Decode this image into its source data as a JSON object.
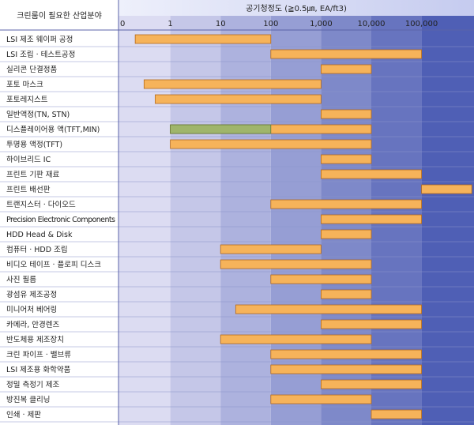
{
  "header": {
    "left_title": "크린룸이 필요한 산업분야",
    "top_title": "공기청정도 (≧0.5㎛, EA/ft3)"
  },
  "chart_data": {
    "type": "bar",
    "orientation": "horizontal-range",
    "x_scale": "log",
    "x_tick_labels": [
      "0",
      "1",
      "10",
      "100",
      "1,000",
      "10,000",
      "100,000"
    ],
    "categories": [
      "LSI 제조 웨이퍼 공정",
      "LSI 조립 · 테스트공정",
      "실리콘 단결정품",
      "포토 마스크",
      "포토레지스트",
      "일반액정(TN, STN)",
      "디스플레이어용 액(TFT,MIN)",
      "투명용 액정(TFT)",
      "하이브리드 IC",
      "프린트 기판 재료",
      "프린트 배선판",
      "트랜지스터 · 다이오드",
      "Precision Electronic Components",
      "HDD Head & Disk",
      "컴퓨터 · HDD 조립",
      "비디오 테이프 · 플로피 디스크",
      "사진 필름",
      "광섬유 제조공정",
      "미니어처 베어링",
      "카메라, 안경렌즈",
      "반도체용 제조장치",
      "크린 파이프 · 밸브류",
      "LSI 제조용 화학약품",
      "정밀 측정기 제조",
      "방진복 클리닝",
      "인쇄 · 제판"
    ],
    "ranges": [
      [
        0.2,
        100
      ],
      [
        100,
        100000
      ],
      [
        1000,
        10000
      ],
      [
        0.3,
        1000
      ],
      [
        0.5,
        1000
      ],
      [
        1000,
        10000
      ],
      [
        1,
        10000
      ],
      [
        1,
        10000
      ],
      [
        1000,
        10000
      ],
      [
        1000,
        100000
      ],
      [
        100000,
        1000000
      ],
      [
        100,
        100000
      ],
      [
        1000,
        100000
      ],
      [
        1000,
        10000
      ],
      [
        10,
        1000
      ],
      [
        10,
        10000
      ],
      [
        100,
        10000
      ],
      [
        1000,
        10000
      ],
      [
        20,
        100000
      ],
      [
        1000,
        100000
      ],
      [
        10,
        10000
      ],
      [
        100,
        100000
      ],
      [
        100,
        100000
      ],
      [
        1000,
        100000
      ],
      [
        100,
        10000
      ],
      [
        10000,
        100000
      ]
    ],
    "highlight": {
      "row": 6,
      "range": [
        1,
        100
      ]
    },
    "colors": {
      "bar_fill": "#f6b35a",
      "bar_stroke": "#b46a1c",
      "highlight_fill": "#9fb56b",
      "highlight_stroke": "#5f7a34",
      "band_light": "#dcdcf2",
      "band_dark": "#4f5fb5",
      "row_line": "#8a93c9",
      "text": "#222222"
    }
  }
}
